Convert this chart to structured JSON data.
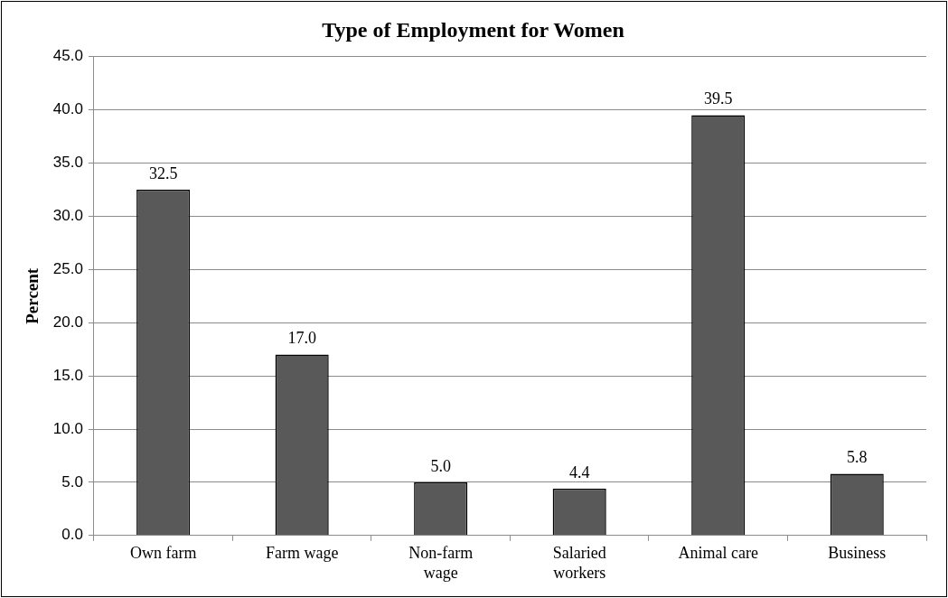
{
  "chart_data": {
    "type": "bar",
    "title": "Type of Employment for Women",
    "ylabel": "Percent",
    "categories": [
      "Own farm",
      "Farm wage",
      "Non-farm wage",
      "Salaried workers",
      "Animal care",
      "Business"
    ],
    "values": [
      32.5,
      17.0,
      5.0,
      4.4,
      39.5,
      5.8
    ],
    "value_labels": [
      "32.5",
      "17.0",
      "5.0",
      "4.4",
      "39.5",
      "5.8"
    ],
    "color": "#595959",
    "ylim": [
      0,
      45
    ],
    "yticks": [
      {
        "value": 0,
        "label": "0.0"
      },
      {
        "value": 5,
        "label": "5.0"
      },
      {
        "value": 10,
        "label": "10.0"
      },
      {
        "value": 15,
        "label": "15.0"
      },
      {
        "value": 20,
        "label": "20.0"
      },
      {
        "value": 25,
        "label": "25.0"
      },
      {
        "value": 30,
        "label": "30.0"
      },
      {
        "value": 35,
        "label": "35.0"
      },
      {
        "value": 40,
        "label": "40.0"
      },
      {
        "value": 45,
        "label": "45.0"
      }
    ],
    "grid": "y",
    "legend": false
  }
}
